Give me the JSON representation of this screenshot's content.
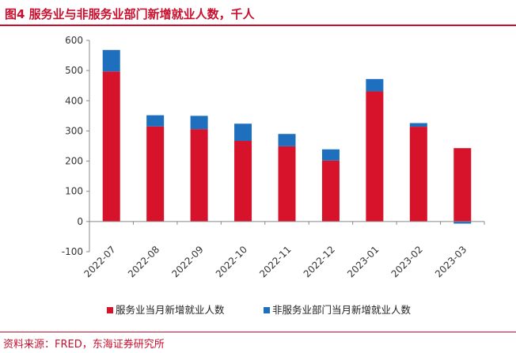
{
  "header": {
    "title": "图4  服务业与非服务业部门新增就业人数，千人"
  },
  "footer": {
    "source": "资料来源：FRED，东海证券研究所"
  },
  "colors": {
    "services": "#d7132b",
    "non_services": "#1f6fbf",
    "accent": "#c8102e"
  },
  "chart_data": {
    "type": "bar",
    "stacked": true,
    "categories": [
      "2022-07",
      "2022-08",
      "2022-09",
      "2022-10",
      "2022-11",
      "2022-12",
      "2023-01",
      "2023-02",
      "2023-03"
    ],
    "series": [
      {
        "name": "服务业当月新增就业人数",
        "values": [
          497,
          315,
          306,
          267,
          249,
          202,
          431,
          314,
          243
        ]
      },
      {
        "name": "非服务业部门当月新增就业人数",
        "values": [
          71,
          37,
          44,
          57,
          41,
          37,
          41,
          12,
          -7
        ]
      }
    ],
    "y_ticks": [
      -100,
      0,
      100,
      200,
      300,
      400,
      500,
      600
    ],
    "ylim": [
      -100,
      600
    ],
    "title": "",
    "xlabel": "",
    "ylabel": "",
    "grid": false,
    "legend_position": "bottom"
  }
}
